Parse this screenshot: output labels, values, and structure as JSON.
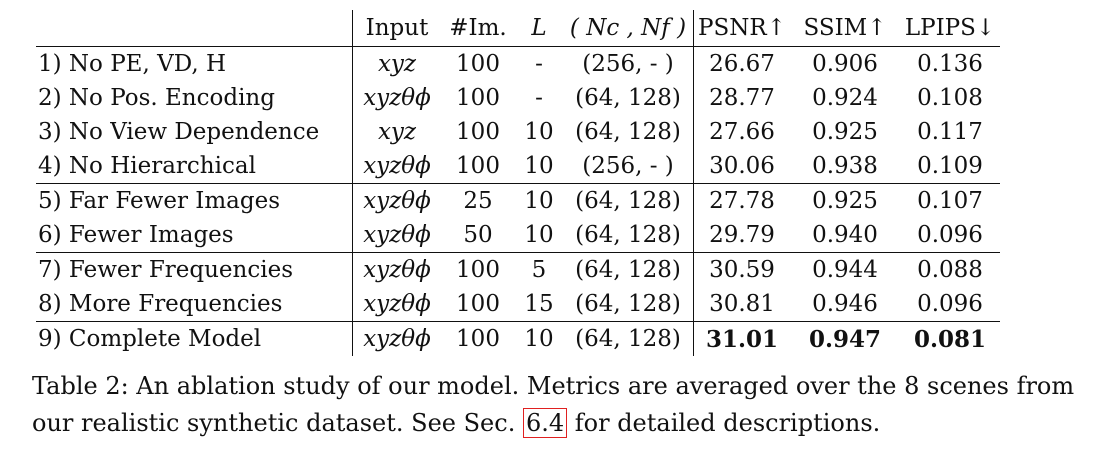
{
  "table": {
    "headers": {
      "name": "",
      "input": "Input",
      "im": "#Im.",
      "l": "L",
      "n": "( Nc , Nf )",
      "psnr": "PSNR↑",
      "ssim": "SSIM↑",
      "lpips": "LPIPS↓"
    },
    "rows": [
      {
        "name": "1) No PE, VD, H",
        "input": "xyz",
        "im": "100",
        "l": "-",
        "n": "(256,  - )",
        "psnr": "26.67",
        "ssim": "0.906",
        "lpips": "0.136"
      },
      {
        "name": "2) No Pos. Encoding",
        "input": "xyzθϕ",
        "im": "100",
        "l": "-",
        "n": "(64, 128)",
        "psnr": "28.77",
        "ssim": "0.924",
        "lpips": "0.108"
      },
      {
        "name": "3) No View Dependence",
        "input": "xyz",
        "im": "100",
        "l": "10",
        "n": "(64, 128)",
        "psnr": "27.66",
        "ssim": "0.925",
        "lpips": "0.117"
      },
      {
        "name": "4) No Hierarchical",
        "input": "xyzθϕ",
        "im": "100",
        "l": "10",
        "n": "(256,  - )",
        "psnr": "30.06",
        "ssim": "0.938",
        "lpips": "0.109"
      },
      {
        "name": "5) Far Fewer Images",
        "input": "xyzθϕ",
        "im": "25",
        "l": "10",
        "n": "(64, 128)",
        "psnr": "27.78",
        "ssim": "0.925",
        "lpips": "0.107"
      },
      {
        "name": "6) Fewer Images",
        "input": "xyzθϕ",
        "im": "50",
        "l": "10",
        "n": "(64, 128)",
        "psnr": "29.79",
        "ssim": "0.940",
        "lpips": "0.096"
      },
      {
        "name": "7) Fewer Frequencies",
        "input": "xyzθϕ",
        "im": "100",
        "l": "5",
        "n": "(64, 128)",
        "psnr": "30.59",
        "ssim": "0.944",
        "lpips": "0.088"
      },
      {
        "name": "8) More Frequencies",
        "input": "xyzθϕ",
        "im": "100",
        "l": "15",
        "n": "(64, 128)",
        "psnr": "30.81",
        "ssim": "0.946",
        "lpips": "0.096"
      },
      {
        "name": "9) Complete Model",
        "input": "xyzθϕ",
        "im": "100",
        "l": "10",
        "n": "(64, 128)",
        "psnr": "31.01",
        "ssim": "0.947",
        "lpips": "0.081"
      }
    ]
  },
  "caption": {
    "text_before": "Table 2: An ablation study of our model. Metrics are averaged over the 8 scenes from our realistic synthetic dataset. See Sec. ",
    "ref": "6.4",
    "text_after": " for detailed descriptions.",
    "ref_color": "#e02020"
  }
}
